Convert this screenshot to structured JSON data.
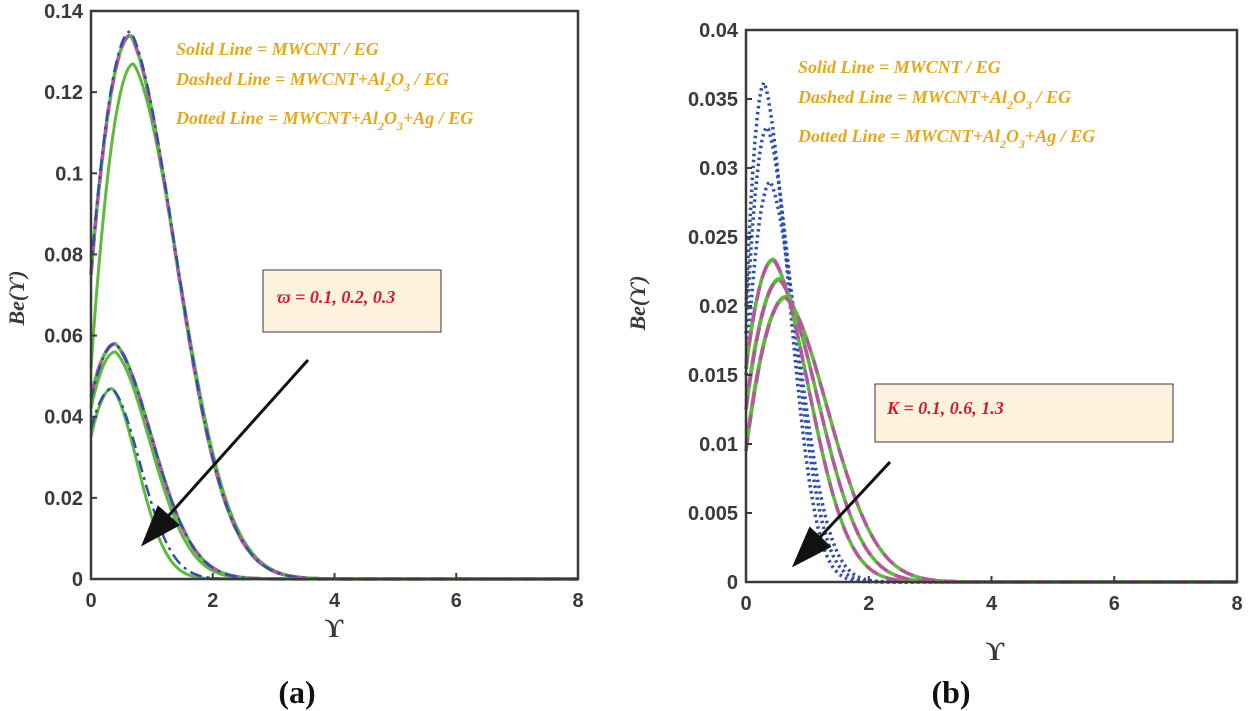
{
  "colors": {
    "solid": "#5dba3b",
    "dashed": "#b5569e",
    "dashed_alt": "#5dba3b",
    "dotted": "#2d4fad",
    "dashdot": "#2d4fad",
    "legend_text": "#e6a817",
    "annotation_text": "#d7192c",
    "annotation_fill": "#fcf2dd",
    "axis": "#3a3a3a"
  },
  "chart_data": [
    {
      "id": "a",
      "type": "line",
      "sublabel": "(a)",
      "xlabel": "ϒ",
      "ylabel": "Be(ϒ)",
      "xlim": [
        0,
        8
      ],
      "ylim": [
        0,
        0.14
      ],
      "xticks": [
        0,
        2,
        4,
        6,
        8
      ],
      "yticks": [
        0,
        0.02,
        0.04,
        0.06,
        0.08,
        0.1,
        0.12,
        0.14
      ],
      "ytick_labels": [
        "0",
        "0.02",
        "0.04",
        "0.06",
        "0.08",
        "0.1",
        "0.12",
        "0.14"
      ],
      "legend": [
        "Solid Line = MWCNT / EG",
        "Dashed Line = MWCNT+Al2O3 / EG",
        "Dotted Line = MWCNT+Al2O3+Ag / EG"
      ],
      "annotation": "ϖ = 0.1, 0.2, 0.3",
      "series": [
        {
          "name": "ϖ=0.1 solid",
          "style": "solid",
          "x0": 0,
          "y0": 0.052,
          "peak_x": 0.7,
          "peak": 0.127,
          "decay": 0.8
        },
        {
          "name": "ϖ=0.1 dashed",
          "style": "dashed",
          "x0": 0,
          "y0": 0.075,
          "peak_x": 0.65,
          "peak": 0.134,
          "decay": 0.8
        },
        {
          "name": "ϖ=0.1 dashdot",
          "style": "dashdot",
          "x0": 0,
          "y0": 0.076,
          "peak_x": 0.65,
          "peak": 0.135,
          "decay": 0.8
        },
        {
          "name": "ϖ=0.2 solid",
          "style": "solid",
          "x0": 0,
          "y0": 0.042,
          "peak_x": 0.4,
          "peak": 0.056,
          "decay": 0.62
        },
        {
          "name": "ϖ=0.2 dashed",
          "style": "dashed",
          "x0": 0,
          "y0": 0.045,
          "peak_x": 0.4,
          "peak": 0.058,
          "decay": 0.65
        },
        {
          "name": "ϖ=0.2 dashdot",
          "style": "dashdot",
          "x0": 0,
          "y0": 0.044,
          "peak_x": 0.4,
          "peak": 0.058,
          "decay": 0.65
        },
        {
          "name": "ϖ=0.3 solid",
          "style": "solid",
          "x0": 0,
          "y0": 0.035,
          "peak_x": 0.35,
          "peak": 0.047,
          "decay": 0.45
        },
        {
          "name": "ϖ=0.3 dashdot",
          "style": "dashdot",
          "x0": 0,
          "y0": 0.037,
          "peak_x": 0.35,
          "peak": 0.047,
          "decay": 0.5
        }
      ]
    },
    {
      "id": "b",
      "type": "line",
      "sublabel": "(b)",
      "xlabel": "ϒ",
      "ylabel": "Be(ϒ)",
      "xlim": [
        0,
        8
      ],
      "ylim": [
        0,
        0.04
      ],
      "xticks": [
        0,
        2,
        4,
        6,
        8
      ],
      "yticks": [
        0,
        0.005,
        0.01,
        0.015,
        0.02,
        0.025,
        0.03,
        0.035,
        0.04
      ],
      "ytick_labels": [
        "0",
        "0.005",
        "0.01",
        "0.015",
        "0.02",
        "0.025",
        "0.03",
        "0.035",
        "0.04"
      ],
      "legend": [
        "Solid Line = MWCNT / EG",
        "Dashed Line = MWCNT+Al2O3 / EG",
        "Dotted Line = MWCNT+Al2O3+Ag / EG"
      ],
      "annotation": "K = 0.1, 0.6, 1.3",
      "series": [
        {
          "name": "K=0.1 dotted",
          "style": "dotted",
          "x0": 0,
          "y0": 0.02,
          "peak_x": 0.3,
          "peak": 0.0362,
          "decay": 0.42
        },
        {
          "name": "K=0.6 dotted",
          "style": "dotted",
          "x0": 0,
          "y0": 0.018,
          "peak_x": 0.35,
          "peak": 0.033,
          "decay": 0.45
        },
        {
          "name": "K=1.3 dotted",
          "style": "dotted",
          "x0": 0,
          "y0": 0.015,
          "peak_x": 0.4,
          "peak": 0.029,
          "decay": 0.48
        },
        {
          "name": "K=0.1 solid",
          "style": "solid",
          "x0": 0,
          "y0": 0.016,
          "peak_x": 0.45,
          "peak": 0.0233,
          "decay": 0.62
        },
        {
          "name": "K=0.6 solid",
          "style": "solid",
          "x0": 0,
          "y0": 0.013,
          "peak_x": 0.55,
          "peak": 0.022,
          "decay": 0.68
        },
        {
          "name": "K=1.3 solid",
          "style": "solid",
          "x0": 0,
          "y0": 0.01,
          "peak_x": 0.65,
          "peak": 0.0207,
          "decay": 0.75
        },
        {
          "name": "K=0.1 dashed",
          "style": "dashed",
          "x0": 0,
          "y0": 0.0155,
          "peak_x": 0.45,
          "peak": 0.0234,
          "decay": 0.62
        },
        {
          "name": "K=0.6 dashed",
          "style": "dashed",
          "x0": 0,
          "y0": 0.0125,
          "peak_x": 0.55,
          "peak": 0.0219,
          "decay": 0.68
        },
        {
          "name": "K=1.3 dashed",
          "style": "dashed",
          "x0": 0,
          "y0": 0.0095,
          "peak_x": 0.65,
          "peak": 0.0206,
          "decay": 0.75
        }
      ]
    }
  ]
}
